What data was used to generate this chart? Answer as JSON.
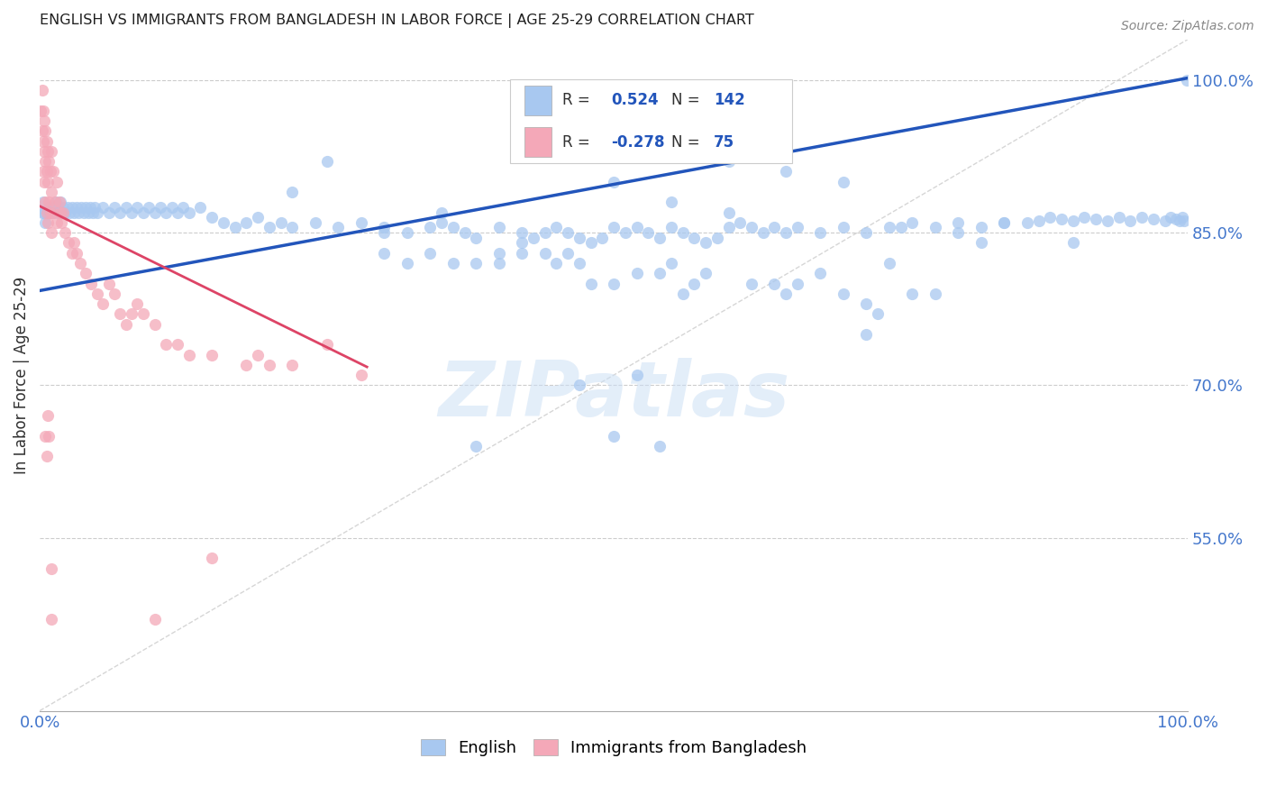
{
  "title": "ENGLISH VS IMMIGRANTS FROM BANGLADESH IN LABOR FORCE | AGE 25-29 CORRELATION CHART",
  "source": "Source: ZipAtlas.com",
  "ylabel": "In Labor Force | Age 25-29",
  "ytick_values": [
    1.0,
    0.85,
    0.7,
    0.55
  ],
  "ytick_labels": [
    "100.0%",
    "85.0%",
    "70.0%",
    "55.0%"
  ],
  "xmin": 0.0,
  "xmax": 1.0,
  "ymin": 0.38,
  "ymax": 1.04,
  "R_blue": 0.524,
  "N_blue": 142,
  "R_pink": -0.278,
  "N_pink": 75,
  "legend_label_blue": "English",
  "legend_label_pink": "Immigrants from Bangladesh",
  "watermark": "ZIPatlas",
  "blue_color": "#a8c8f0",
  "pink_color": "#f4a8b8",
  "blue_line_color": "#2255bb",
  "pink_line_color": "#dd4466",
  "diagonal_color": "#cccccc",
  "title_color": "#202020",
  "axis_tick_color": "#4477cc",
  "legend_r_color": "#2255bb",
  "blue_line_x0": 0.0,
  "blue_line_y0": 0.793,
  "blue_line_x1": 1.0,
  "blue_line_y1": 1.002,
  "pink_line_x0": 0.0,
  "pink_line_y0": 0.876,
  "pink_line_x1": 0.285,
  "pink_line_y1": 0.718,
  "blue_scatter": [
    [
      0.002,
      0.87
    ],
    [
      0.003,
      0.88
    ],
    [
      0.004,
      0.87
    ],
    [
      0.005,
      0.86
    ],
    [
      0.006,
      0.87
    ],
    [
      0.007,
      0.87
    ],
    [
      0.008,
      0.875
    ],
    [
      0.009,
      0.87
    ],
    [
      0.01,
      0.875
    ],
    [
      0.012,
      0.87
    ],
    [
      0.014,
      0.88
    ],
    [
      0.016,
      0.87
    ],
    [
      0.018,
      0.88
    ],
    [
      0.02,
      0.875
    ],
    [
      0.022,
      0.87
    ],
    [
      0.024,
      0.875
    ],
    [
      0.026,
      0.87
    ],
    [
      0.028,
      0.875
    ],
    [
      0.03,
      0.87
    ],
    [
      0.032,
      0.875
    ],
    [
      0.034,
      0.87
    ],
    [
      0.036,
      0.875
    ],
    [
      0.038,
      0.87
    ],
    [
      0.04,
      0.875
    ],
    [
      0.042,
      0.87
    ],
    [
      0.044,
      0.875
    ],
    [
      0.046,
      0.87
    ],
    [
      0.048,
      0.875
    ],
    [
      0.05,
      0.87
    ],
    [
      0.055,
      0.875
    ],
    [
      0.06,
      0.87
    ],
    [
      0.065,
      0.875
    ],
    [
      0.07,
      0.87
    ],
    [
      0.075,
      0.875
    ],
    [
      0.08,
      0.87
    ],
    [
      0.085,
      0.875
    ],
    [
      0.09,
      0.87
    ],
    [
      0.095,
      0.875
    ],
    [
      0.1,
      0.87
    ],
    [
      0.105,
      0.875
    ],
    [
      0.11,
      0.87
    ],
    [
      0.115,
      0.875
    ],
    [
      0.12,
      0.87
    ],
    [
      0.125,
      0.875
    ],
    [
      0.13,
      0.87
    ],
    [
      0.14,
      0.875
    ],
    [
      0.15,
      0.865
    ],
    [
      0.16,
      0.86
    ],
    [
      0.17,
      0.855
    ],
    [
      0.18,
      0.86
    ],
    [
      0.19,
      0.865
    ],
    [
      0.2,
      0.855
    ],
    [
      0.21,
      0.86
    ],
    [
      0.22,
      0.855
    ],
    [
      0.24,
      0.86
    ],
    [
      0.26,
      0.855
    ],
    [
      0.28,
      0.86
    ],
    [
      0.3,
      0.855
    ],
    [
      0.32,
      0.85
    ],
    [
      0.34,
      0.855
    ],
    [
      0.35,
      0.86
    ],
    [
      0.36,
      0.855
    ],
    [
      0.37,
      0.85
    ],
    [
      0.38,
      0.845
    ],
    [
      0.4,
      0.855
    ],
    [
      0.42,
      0.85
    ],
    [
      0.43,
      0.845
    ],
    [
      0.44,
      0.85
    ],
    [
      0.45,
      0.855
    ],
    [
      0.46,
      0.85
    ],
    [
      0.47,
      0.845
    ],
    [
      0.48,
      0.84
    ],
    [
      0.49,
      0.845
    ],
    [
      0.5,
      0.855
    ],
    [
      0.51,
      0.85
    ],
    [
      0.52,
      0.855
    ],
    [
      0.53,
      0.85
    ],
    [
      0.54,
      0.845
    ],
    [
      0.55,
      0.855
    ],
    [
      0.56,
      0.85
    ],
    [
      0.57,
      0.845
    ],
    [
      0.58,
      0.84
    ],
    [
      0.59,
      0.845
    ],
    [
      0.6,
      0.855
    ],
    [
      0.61,
      0.86
    ],
    [
      0.62,
      0.855
    ],
    [
      0.63,
      0.85
    ],
    [
      0.64,
      0.855
    ],
    [
      0.65,
      0.85
    ],
    [
      0.66,
      0.855
    ],
    [
      0.68,
      0.85
    ],
    [
      0.7,
      0.855
    ],
    [
      0.72,
      0.85
    ],
    [
      0.74,
      0.855
    ],
    [
      0.75,
      0.855
    ],
    [
      0.76,
      0.86
    ],
    [
      0.78,
      0.855
    ],
    [
      0.8,
      0.86
    ],
    [
      0.82,
      0.855
    ],
    [
      0.84,
      0.86
    ],
    [
      0.86,
      0.86
    ],
    [
      0.87,
      0.862
    ],
    [
      0.88,
      0.865
    ],
    [
      0.89,
      0.863
    ],
    [
      0.9,
      0.862
    ],
    [
      0.91,
      0.865
    ],
    [
      0.92,
      0.863
    ],
    [
      0.93,
      0.862
    ],
    [
      0.94,
      0.865
    ],
    [
      0.95,
      0.862
    ],
    [
      0.96,
      0.865
    ],
    [
      0.97,
      0.863
    ],
    [
      0.98,
      0.862
    ],
    [
      0.985,
      0.865
    ],
    [
      0.99,
      0.863
    ],
    [
      0.993,
      0.862
    ],
    [
      0.995,
      0.865
    ],
    [
      0.997,
      0.862
    ],
    [
      0.999,
      1.0
    ],
    [
      0.3,
      0.83
    ],
    [
      0.32,
      0.82
    ],
    [
      0.34,
      0.83
    ],
    [
      0.36,
      0.82
    ],
    [
      0.38,
      0.82
    ],
    [
      0.4,
      0.82
    ],
    [
      0.42,
      0.83
    ],
    [
      0.44,
      0.83
    ],
    [
      0.45,
      0.82
    ],
    [
      0.46,
      0.83
    ],
    [
      0.47,
      0.82
    ],
    [
      0.48,
      0.8
    ],
    [
      0.5,
      0.8
    ],
    [
      0.52,
      0.81
    ],
    [
      0.54,
      0.81
    ],
    [
      0.55,
      0.82
    ],
    [
      0.56,
      0.79
    ],
    [
      0.57,
      0.8
    ],
    [
      0.58,
      0.81
    ],
    [
      0.6,
      0.87
    ],
    [
      0.62,
      0.8
    ],
    [
      0.64,
      0.8
    ],
    [
      0.65,
      0.79
    ],
    [
      0.66,
      0.8
    ],
    [
      0.68,
      0.81
    ],
    [
      0.7,
      0.79
    ],
    [
      0.72,
      0.78
    ],
    [
      0.73,
      0.77
    ],
    [
      0.74,
      0.82
    ],
    [
      0.76,
      0.79
    ],
    [
      0.78,
      0.79
    ],
    [
      0.8,
      0.85
    ],
    [
      0.82,
      0.84
    ],
    [
      0.84,
      0.86
    ],
    [
      0.9,
      0.84
    ],
    [
      0.38,
      0.64
    ],
    [
      0.5,
      0.65
    ],
    [
      0.47,
      0.7
    ],
    [
      0.52,
      0.71
    ],
    [
      0.54,
      0.64
    ],
    [
      0.4,
      0.83
    ],
    [
      0.42,
      0.84
    ],
    [
      0.22,
      0.89
    ],
    [
      0.25,
      0.92
    ],
    [
      0.3,
      0.85
    ],
    [
      0.35,
      0.87
    ],
    [
      0.5,
      0.9
    ],
    [
      0.55,
      0.88
    ],
    [
      0.6,
      0.92
    ],
    [
      0.65,
      0.91
    ],
    [
      0.7,
      0.9
    ],
    [
      0.72,
      0.75
    ]
  ],
  "pink_scatter": [
    [
      0.001,
      0.97
    ],
    [
      0.002,
      0.99
    ],
    [
      0.002,
      0.95
    ],
    [
      0.003,
      0.97
    ],
    [
      0.003,
      0.94
    ],
    [
      0.003,
      0.91
    ],
    [
      0.004,
      0.96
    ],
    [
      0.004,
      0.93
    ],
    [
      0.004,
      0.9
    ],
    [
      0.005,
      0.95
    ],
    [
      0.005,
      0.92
    ],
    [
      0.005,
      0.88
    ],
    [
      0.006,
      0.94
    ],
    [
      0.006,
      0.91
    ],
    [
      0.006,
      0.87
    ],
    [
      0.007,
      0.93
    ],
    [
      0.007,
      0.9
    ],
    [
      0.007,
      0.86
    ],
    [
      0.008,
      0.92
    ],
    [
      0.008,
      0.88
    ],
    [
      0.009,
      0.91
    ],
    [
      0.009,
      0.87
    ],
    [
      0.01,
      0.93
    ],
    [
      0.01,
      0.89
    ],
    [
      0.01,
      0.85
    ],
    [
      0.012,
      0.91
    ],
    [
      0.012,
      0.87
    ],
    [
      0.013,
      0.88
    ],
    [
      0.015,
      0.9
    ],
    [
      0.015,
      0.86
    ],
    [
      0.017,
      0.88
    ],
    [
      0.018,
      0.87
    ],
    [
      0.019,
      0.86
    ],
    [
      0.02,
      0.87
    ],
    [
      0.022,
      0.85
    ],
    [
      0.025,
      0.84
    ],
    [
      0.028,
      0.83
    ],
    [
      0.03,
      0.84
    ],
    [
      0.032,
      0.83
    ],
    [
      0.035,
      0.82
    ],
    [
      0.04,
      0.81
    ],
    [
      0.045,
      0.8
    ],
    [
      0.05,
      0.79
    ],
    [
      0.055,
      0.78
    ],
    [
      0.06,
      0.8
    ],
    [
      0.065,
      0.79
    ],
    [
      0.07,
      0.77
    ],
    [
      0.075,
      0.76
    ],
    [
      0.08,
      0.77
    ],
    [
      0.085,
      0.78
    ],
    [
      0.09,
      0.77
    ],
    [
      0.1,
      0.76
    ],
    [
      0.11,
      0.74
    ],
    [
      0.12,
      0.74
    ],
    [
      0.13,
      0.73
    ],
    [
      0.15,
      0.73
    ],
    [
      0.18,
      0.72
    ],
    [
      0.19,
      0.73
    ],
    [
      0.2,
      0.72
    ],
    [
      0.22,
      0.72
    ],
    [
      0.25,
      0.74
    ],
    [
      0.28,
      0.71
    ],
    [
      0.005,
      0.65
    ],
    [
      0.006,
      0.63
    ],
    [
      0.007,
      0.67
    ],
    [
      0.008,
      0.65
    ],
    [
      0.01,
      0.52
    ],
    [
      0.01,
      0.47
    ],
    [
      0.15,
      0.53
    ],
    [
      0.1,
      0.47
    ]
  ]
}
